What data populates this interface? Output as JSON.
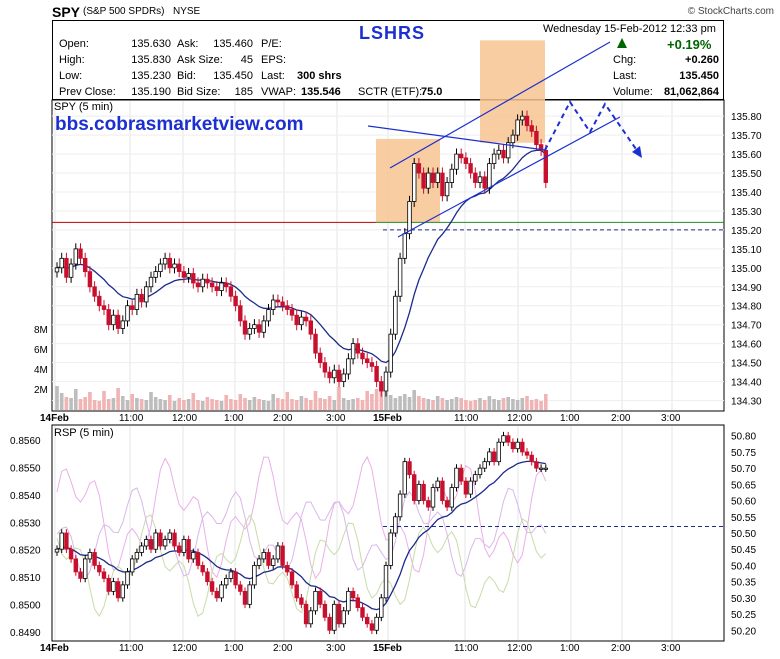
{
  "header": {
    "symbol": "SPY",
    "name": "(S&P 500 SPDRs)",
    "exchange": "NYSE",
    "credit": "© StockCharts.com",
    "date": "Wednesday  15-Feb-2012  12:33 pm",
    "title": "LSHRS",
    "change_pct": "+0.19%"
  },
  "quote": {
    "open_label": "Open:",
    "open": "135.630",
    "high_label": "High:",
    "high": "135.830",
    "low_label": "Low:",
    "low": "135.230",
    "prev_close_label": "Prev Close:",
    "prev_close": "135.190",
    "ask_label": "Ask:",
    "ask": "135.460",
    "ask_size_label": "Ask Size:",
    "ask_size": "45",
    "bid_label": "Bid:",
    "bid": "135.450",
    "bid_size_label": "Bid Size:",
    "bid_size": "185",
    "pe_label": "P/E:",
    "eps_label": "EPS:",
    "last_shrs_label": "Last:",
    "last_shrs": "300 shrs",
    "vwap_label": "VWAP:",
    "vwap": "135.546",
    "sctr_label": "SCTR (ETF):",
    "sctr": "75.0",
    "chg_label": "Chg:",
    "chg": "+0.260",
    "last_label": "Last:",
    "last": "135.450",
    "volume_label": "Volume:",
    "volume": "81,062,864"
  },
  "colors": {
    "up": "#000000",
    "down": "#c8102e",
    "ma": "#1c2a8c",
    "trend": "#1c2fd0",
    "highlight": "#f7c490",
    "resistance": "#c00000",
    "support": "#228b22",
    "vol_up": "#bdbdbd",
    "vol_down": "#f0b4b4"
  },
  "chart_data": [
    {
      "type": "candlestick",
      "panel": "SPY (5 min)",
      "title": "SPY (5 min)",
      "watermark": "bbs.cobrasmarketview.com",
      "x_ticks": [
        "14Feb",
        "11:00",
        "12:00",
        "1:00",
        "2:00",
        "3:00",
        "15Feb",
        "11:00",
        "12:00",
        "1:00",
        "2:00",
        "3:00"
      ],
      "y_ticks": [
        135.8,
        135.7,
        135.6,
        135.5,
        135.4,
        135.3,
        135.2,
        135.1,
        135.0,
        134.9,
        134.8,
        134.7,
        134.6,
        134.5,
        134.4,
        134.3
      ],
      "ylim": [
        134.25,
        135.88
      ],
      "volume_ticks": [
        "8M",
        "6M",
        "4M",
        "2M"
      ],
      "horizontal_lines": [
        135.24,
        135.2
      ],
      "close": [
        135.0,
        135.05,
        134.95,
        135.02,
        135.1,
        135.05,
        134.98,
        134.9,
        134.85,
        134.8,
        134.78,
        134.7,
        134.75,
        134.68,
        134.72,
        134.8,
        134.78,
        134.86,
        134.82,
        134.9,
        134.95,
        134.98,
        135.02,
        135.05,
        135.0,
        135.02,
        134.98,
        134.95,
        134.97,
        134.92,
        134.9,
        134.94,
        134.92,
        134.9,
        134.88,
        134.92,
        134.9,
        134.85,
        134.8,
        134.72,
        134.65,
        134.68,
        134.7,
        134.66,
        134.72,
        134.78,
        134.83,
        134.82,
        134.8,
        134.78,
        134.75,
        134.7,
        134.74,
        134.72,
        134.65,
        134.55,
        134.5,
        134.45,
        134.42,
        134.46,
        134.4,
        134.44,
        134.52,
        134.6,
        134.55,
        134.52,
        134.5,
        134.48,
        134.4,
        134.35,
        134.45,
        134.65,
        134.85,
        135.05,
        135.18,
        135.35,
        135.55,
        135.5,
        135.42,
        135.5,
        135.45,
        135.5,
        135.38,
        135.45,
        135.52,
        135.6,
        135.58,
        135.55,
        135.5,
        135.45,
        135.48,
        135.42,
        135.55,
        135.6,
        135.62,
        135.58,
        135.66,
        135.7,
        135.78,
        135.8,
        135.75,
        135.72,
        135.65,
        135.62,
        135.45
      ],
      "volume_millions": [
        2.4,
        1.7,
        1.3,
        1.2,
        2.1,
        1.1,
        1.3,
        1.8,
        1.0,
        0.9,
        1.9,
        1.1,
        1.2,
        2.2,
        1.4,
        1.0,
        1.6,
        1.2,
        1.1,
        1.0,
        1.8,
        1.3,
        1.1,
        1.0,
        1.5,
        0.9,
        1.2,
        1.0,
        1.1,
        1.7,
        1.0,
        0.9,
        1.3,
        1.1,
        1.0,
        0.9,
        1.5,
        1.1,
        1.0,
        1.6,
        1.2,
        1.0,
        1.3,
        1.1,
        1.0,
        0.9,
        1.6,
        1.2,
        1.1,
        1.8,
        1.1,
        1.0,
        1.4,
        1.2,
        1.0,
        1.9,
        1.2,
        1.1,
        1.4,
        1.0,
        2.3,
        1.2,
        1.0,
        1.1,
        1.2,
        1.0,
        1.9,
        1.6,
        2.1,
        2.6,
        1.8,
        1.5,
        1.2,
        1.4,
        1.6,
        1.3,
        2.0,
        1.4,
        1.2,
        1.1,
        1.0,
        1.4,
        1.2,
        1.0,
        1.1,
        1.3,
        1.2,
        1.0,
        0.9,
        1.0,
        1.2,
        1.0,
        1.4,
        1.1,
        1.0,
        1.2,
        1.3,
        1.1,
        1.0,
        1.2,
        1.4,
        1.0,
        1.1,
        0.9,
        1.6
      ]
    },
    {
      "type": "line",
      "panel": "RSP (5 min)",
      "title": "RSP (5 min)",
      "x_ticks": [
        "14Feb",
        "11:00",
        "12:00",
        "1:00",
        "2:00",
        "3:00",
        "15Feb",
        "11:00",
        "12:00",
        "1:00",
        "2:00",
        "3:00"
      ],
      "left_y_ticks": [
        0.856,
        0.855,
        0.854,
        0.853,
        0.852,
        0.851,
        0.85,
        0.849
      ],
      "right_y_ticks": [
        50.8,
        50.75,
        50.7,
        50.65,
        50.6,
        50.55,
        50.5,
        50.45,
        50.4,
        50.35,
        50.3,
        50.25,
        50.2
      ],
      "ylim": [
        50.17,
        50.83
      ],
      "horizontal_lines": [
        50.52
      ],
      "close": [
        50.45,
        50.5,
        50.45,
        50.42,
        50.38,
        50.36,
        50.42,
        50.44,
        50.4,
        50.38,
        50.36,
        50.32,
        50.35,
        50.3,
        50.34,
        50.38,
        50.42,
        50.44,
        50.46,
        50.48,
        50.45,
        50.5,
        50.46,
        50.48,
        50.5,
        50.46,
        50.44,
        50.48,
        50.42,
        50.44,
        50.4,
        50.38,
        50.35,
        50.32,
        50.3,
        50.34,
        50.36,
        50.38,
        50.34,
        50.32,
        50.28,
        50.34,
        50.4,
        50.42,
        50.44,
        50.4,
        50.42,
        50.46,
        50.4,
        50.38,
        50.34,
        50.3,
        50.28,
        50.22,
        50.26,
        50.32,
        50.28,
        50.24,
        50.2,
        50.28,
        50.22,
        50.26,
        50.32,
        50.3,
        50.27,
        50.24,
        50.22,
        50.2,
        50.24,
        50.3,
        50.4,
        50.5,
        50.55,
        50.62,
        50.72,
        50.68,
        50.6,
        50.65,
        50.6,
        50.58,
        50.64,
        50.66,
        50.6,
        50.58,
        50.64,
        50.7,
        50.66,
        50.62,
        50.66,
        50.68,
        50.7,
        50.72,
        50.75,
        50.72,
        50.78,
        50.8,
        50.78,
        50.76,
        50.78,
        50.75,
        50.74,
        50.72,
        50.7,
        50.7,
        50.7
      ]
    }
  ]
}
